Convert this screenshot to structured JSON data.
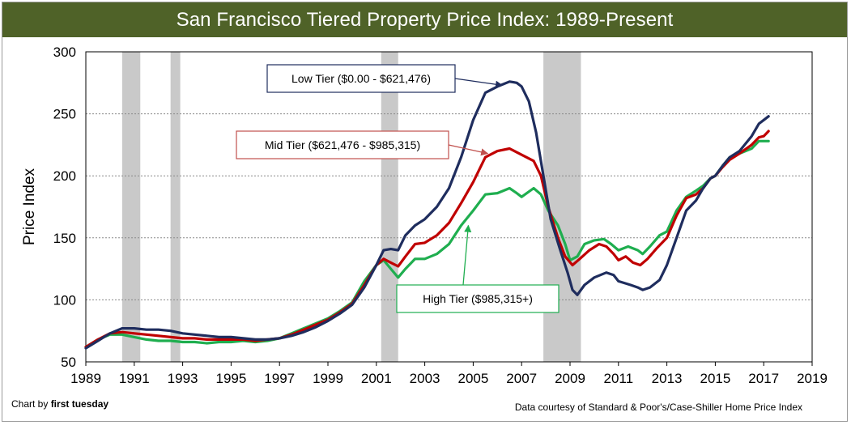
{
  "chart_data": {
    "type": "line",
    "title": "San Francisco Tiered Property Price Index: 1989-Present",
    "xlabel": "",
    "ylabel": "Price Index",
    "xlim": [
      1989,
      2019
    ],
    "ylim": [
      50,
      300
    ],
    "xticks": [
      1989,
      1991,
      1993,
      1995,
      1997,
      1999,
      2001,
      2003,
      2005,
      2007,
      2009,
      2011,
      2013,
      2015,
      2017,
      2019
    ],
    "yticks": [
      50,
      100,
      150,
      200,
      250,
      300
    ],
    "recessions": [
      [
        1990.5,
        1991.25
      ],
      [
        1992.5,
        1992.9
      ],
      [
        2001.2,
        2001.9
      ],
      [
        2007.9,
        2009.45
      ]
    ],
    "series": [
      {
        "name": "Low Tier",
        "color": "#1f2d5e",
        "points": [
          [
            1989.0,
            61
          ],
          [
            1989.5,
            67
          ],
          [
            1990.0,
            73
          ],
          [
            1990.5,
            77
          ],
          [
            1991.0,
            77
          ],
          [
            1991.5,
            76
          ],
          [
            1992.0,
            76
          ],
          [
            1992.5,
            75
          ],
          [
            1993.0,
            73
          ],
          [
            1993.5,
            72
          ],
          [
            1994.0,
            71
          ],
          [
            1994.5,
            70
          ],
          [
            1995.0,
            70
          ],
          [
            1995.5,
            69
          ],
          [
            1996.0,
            68
          ],
          [
            1996.5,
            68
          ],
          [
            1997.0,
            69
          ],
          [
            1997.5,
            71
          ],
          [
            1998.0,
            74
          ],
          [
            1998.5,
            78
          ],
          [
            1999.0,
            83
          ],
          [
            1999.5,
            89
          ],
          [
            2000.0,
            96
          ],
          [
            2000.5,
            110
          ],
          [
            2001.0,
            128
          ],
          [
            2001.3,
            140
          ],
          [
            2001.6,
            141
          ],
          [
            2001.9,
            140
          ],
          [
            2002.2,
            152
          ],
          [
            2002.6,
            160
          ],
          [
            2003.0,
            165
          ],
          [
            2003.5,
            175
          ],
          [
            2004.0,
            190
          ],
          [
            2004.5,
            215
          ],
          [
            2005.0,
            245
          ],
          [
            2005.5,
            267
          ],
          [
            2006.0,
            272
          ],
          [
            2006.5,
            276
          ],
          [
            2006.8,
            275
          ],
          [
            2007.0,
            272
          ],
          [
            2007.3,
            260
          ],
          [
            2007.6,
            235
          ],
          [
            2007.9,
            200
          ],
          [
            2008.2,
            165
          ],
          [
            2008.6,
            140
          ],
          [
            2008.9,
            122
          ],
          [
            2009.1,
            108
          ],
          [
            2009.3,
            104
          ],
          [
            2009.6,
            112
          ],
          [
            2010.0,
            118
          ],
          [
            2010.5,
            122
          ],
          [
            2010.8,
            120
          ],
          [
            2011.0,
            115
          ],
          [
            2011.5,
            112
          ],
          [
            2011.8,
            110
          ],
          [
            2012.0,
            108
          ],
          [
            2012.3,
            110
          ],
          [
            2012.7,
            116
          ],
          [
            2013.0,
            128
          ],
          [
            2013.4,
            150
          ],
          [
            2013.8,
            172
          ],
          [
            2014.2,
            180
          ],
          [
            2014.5,
            190
          ],
          [
            2014.8,
            198
          ],
          [
            2015.0,
            200
          ],
          [
            2015.3,
            208
          ],
          [
            2015.6,
            215
          ],
          [
            2016.0,
            220
          ],
          [
            2016.5,
            232
          ],
          [
            2016.8,
            242
          ],
          [
            2017.0,
            245
          ],
          [
            2017.2,
            248
          ]
        ]
      },
      {
        "name": "Mid Tier",
        "color": "#c00000",
        "points": [
          [
            1989.0,
            62
          ],
          [
            1989.5,
            68
          ],
          [
            1990.0,
            73
          ],
          [
            1990.5,
            74
          ],
          [
            1991.0,
            73
          ],
          [
            1991.5,
            72
          ],
          [
            1992.0,
            71
          ],
          [
            1992.5,
            70
          ],
          [
            1993.0,
            69
          ],
          [
            1993.5,
            69
          ],
          [
            1994.0,
            68
          ],
          [
            1994.5,
            68
          ],
          [
            1995.0,
            68
          ],
          [
            1995.5,
            68
          ],
          [
            1996.0,
            67
          ],
          [
            1996.5,
            68
          ],
          [
            1997.0,
            69
          ],
          [
            1997.5,
            72
          ],
          [
            1998.0,
            76
          ],
          [
            1998.5,
            80
          ],
          [
            1999.0,
            84
          ],
          [
            1999.5,
            90
          ],
          [
            2000.0,
            97
          ],
          [
            2000.5,
            112
          ],
          [
            2001.0,
            128
          ],
          [
            2001.3,
            133
          ],
          [
            2001.6,
            130
          ],
          [
            2001.9,
            127
          ],
          [
            2002.2,
            135
          ],
          [
            2002.6,
            145
          ],
          [
            2003.0,
            146
          ],
          [
            2003.5,
            152
          ],
          [
            2004.0,
            162
          ],
          [
            2004.5,
            178
          ],
          [
            2005.0,
            195
          ],
          [
            2005.5,
            215
          ],
          [
            2006.0,
            220
          ],
          [
            2006.5,
            222
          ],
          [
            2007.0,
            217
          ],
          [
            2007.5,
            212
          ],
          [
            2007.8,
            200
          ],
          [
            2008.1,
            175
          ],
          [
            2008.5,
            150
          ],
          [
            2008.8,
            135
          ],
          [
            2009.1,
            128
          ],
          [
            2009.4,
            133
          ],
          [
            2009.8,
            140
          ],
          [
            2010.2,
            145
          ],
          [
            2010.5,
            143
          ],
          [
            2010.8,
            137
          ],
          [
            2011.0,
            132
          ],
          [
            2011.3,
            135
          ],
          [
            2011.6,
            130
          ],
          [
            2011.9,
            128
          ],
          [
            2012.2,
            133
          ],
          [
            2012.6,
            142
          ],
          [
            2013.0,
            150
          ],
          [
            2013.4,
            168
          ],
          [
            2013.8,
            182
          ],
          [
            2014.2,
            185
          ],
          [
            2014.5,
            190
          ],
          [
            2014.8,
            198
          ],
          [
            2015.0,
            200
          ],
          [
            2015.3,
            207
          ],
          [
            2015.6,
            213
          ],
          [
            2016.0,
            218
          ],
          [
            2016.5,
            225
          ],
          [
            2016.8,
            231
          ],
          [
            2017.0,
            232
          ],
          [
            2017.2,
            236
          ]
        ]
      },
      {
        "name": "High Tier",
        "color": "#1fae4f",
        "points": [
          [
            1989.0,
            62
          ],
          [
            1989.5,
            68
          ],
          [
            1990.0,
            72
          ],
          [
            1990.5,
            72
          ],
          [
            1991.0,
            70
          ],
          [
            1991.5,
            68
          ],
          [
            1992.0,
            67
          ],
          [
            1992.5,
            67
          ],
          [
            1993.0,
            66
          ],
          [
            1993.5,
            66
          ],
          [
            1994.0,
            65
          ],
          [
            1994.5,
            66
          ],
          [
            1995.0,
            66
          ],
          [
            1995.5,
            67
          ],
          [
            1996.0,
            66
          ],
          [
            1996.5,
            67
          ],
          [
            1997.0,
            69
          ],
          [
            1997.5,
            73
          ],
          [
            1998.0,
            77
          ],
          [
            1998.5,
            81
          ],
          [
            1999.0,
            85
          ],
          [
            1999.5,
            91
          ],
          [
            2000.0,
            98
          ],
          [
            2000.5,
            115
          ],
          [
            2001.0,
            128
          ],
          [
            2001.3,
            132
          ],
          [
            2001.6,
            125
          ],
          [
            2001.9,
            118
          ],
          [
            2002.2,
            125
          ],
          [
            2002.6,
            133
          ],
          [
            2003.0,
            133
          ],
          [
            2003.5,
            137
          ],
          [
            2004.0,
            145
          ],
          [
            2004.5,
            160
          ],
          [
            2005.0,
            172
          ],
          [
            2005.5,
            185
          ],
          [
            2006.0,
            186
          ],
          [
            2006.5,
            190
          ],
          [
            2006.8,
            186
          ],
          [
            2007.0,
            183
          ],
          [
            2007.5,
            190
          ],
          [
            2007.8,
            185
          ],
          [
            2008.1,
            172
          ],
          [
            2008.5,
            160
          ],
          [
            2008.8,
            145
          ],
          [
            2009.0,
            132
          ],
          [
            2009.3,
            135
          ],
          [
            2009.6,
            145
          ],
          [
            2010.0,
            148
          ],
          [
            2010.4,
            149
          ],
          [
            2010.7,
            145
          ],
          [
            2011.0,
            140
          ],
          [
            2011.4,
            143
          ],
          [
            2011.8,
            140
          ],
          [
            2012.0,
            137
          ],
          [
            2012.3,
            143
          ],
          [
            2012.7,
            152
          ],
          [
            2013.0,
            155
          ],
          [
            2013.4,
            172
          ],
          [
            2013.8,
            183
          ],
          [
            2014.2,
            188
          ],
          [
            2014.5,
            192
          ],
          [
            2014.8,
            198
          ],
          [
            2015.0,
            200
          ],
          [
            2015.3,
            208
          ],
          [
            2015.6,
            215
          ],
          [
            2016.0,
            218
          ],
          [
            2016.5,
            222
          ],
          [
            2016.8,
            228
          ],
          [
            2017.0,
            228
          ],
          [
            2017.2,
            228
          ]
        ]
      }
    ],
    "annotations": [
      {
        "text": "Low Tier ($0.00 - $621,476)",
        "border": "#1f2d5e",
        "arrow_to": [
          2006.2,
          273
        ]
      },
      {
        "text": "Mid Tier ($621,476 - $985,315)",
        "border": "#c0504d",
        "arrow_to": [
          2005.6,
          218
        ]
      },
      {
        "text": "High Tier ($985,315+)",
        "border": "#1fae4f",
        "arrow_to": [
          2004.8,
          160
        ]
      }
    ]
  },
  "footer": {
    "credit_prefix": "Chart by ",
    "credit_name": "first tuesday",
    "source": "Data courtesy of Standard & Poor's/Case-Shiller Home Price Index"
  }
}
